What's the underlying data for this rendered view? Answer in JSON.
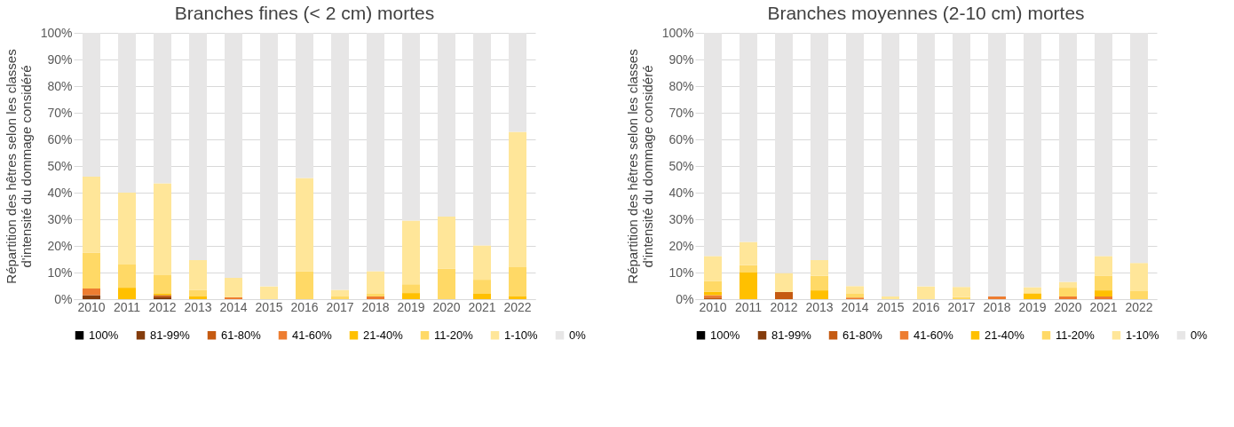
{
  "chart_data": [
    {
      "type": "bar",
      "stacked": true,
      "title": "Branches fines (< 2 cm) mortes",
      "ylabel": "Répartition des hêtres selon les classes d'intensité du dommage  considéré",
      "legend": "bottom",
      "grid": "y",
      "categories": [
        "2010",
        "2011",
        "2012",
        "2013",
        "2014",
        "2015",
        "2016",
        "2017",
        "2018",
        "2019",
        "2020",
        "2021",
        "2022"
      ],
      "ylim": [
        0,
        100
      ],
      "yticks": [
        {
          "value": 0,
          "label": "0%"
        },
        {
          "value": 10,
          "label": "10%"
        },
        {
          "value": 20,
          "label": "20%"
        },
        {
          "value": 30,
          "label": "30%"
        },
        {
          "value": 40,
          "label": "40%"
        },
        {
          "value": 50,
          "label": "50%"
        },
        {
          "value": 60,
          "label": "60%"
        },
        {
          "value": 70,
          "label": "70%"
        },
        {
          "value": 80,
          "label": "80%"
        },
        {
          "value": 90,
          "label": "90%"
        },
        {
          "value": 100,
          "label": "100%"
        }
      ],
      "series": [
        {
          "name": "100%",
          "color": "#000000",
          "values": [
            0,
            0,
            0,
            0,
            0,
            0,
            0,
            0,
            0,
            0,
            0,
            0,
            0
          ]
        },
        {
          "name": "81-99%",
          "color": "#843c0c",
          "values": [
            1.5,
            0,
            0.7,
            0,
            0,
            0,
            0,
            0,
            0,
            0,
            0,
            0,
            0
          ]
        },
        {
          "name": "61-80%",
          "color": "#c55a11",
          "values": [
            0,
            0,
            0.8,
            0,
            0,
            0,
            0,
            0,
            0,
            0,
            0,
            0,
            0
          ]
        },
        {
          "name": "41-60%",
          "color": "#ed7d31",
          "values": [
            2.5,
            0,
            0,
            0,
            0.7,
            0,
            0,
            0,
            1,
            0,
            0,
            0,
            0
          ]
        },
        {
          "name": "21-40%",
          "color": "#ffc000",
          "values": [
            0,
            4.3,
            0.7,
            1.2,
            0,
            0,
            0,
            0,
            0,
            2.3,
            0,
            2,
            1.2
          ]
        },
        {
          "name": "11-20%",
          "color": "#ffd966",
          "values": [
            13.5,
            8.7,
            6.8,
            2.3,
            0,
            0,
            10.5,
            1,
            1,
            3.3,
            11.5,
            5.3,
            10.8
          ]
        },
        {
          "name": "1-10%",
          "color": "#ffe699",
          "values": [
            28.5,
            27,
            34.5,
            11.2,
            7.3,
            4.8,
            35,
            2.5,
            8.5,
            23.9,
            19.5,
            12.9,
            50.8
          ]
        },
        {
          "name": "0%",
          "color": "#e7e6e6",
          "values": [
            54,
            60,
            56.5,
            85.3,
            92,
            95.2,
            54.5,
            96.5,
            89.5,
            70.5,
            69,
            79.8,
            37.2
          ]
        }
      ]
    },
    {
      "type": "bar",
      "stacked": true,
      "title": "Branches moyennes (2-10 cm) mortes",
      "ylabel": "Répartition des hêtres selon les classes d'intensité du dommage  considéré",
      "legend": "bottom",
      "grid": "y",
      "categories": [
        "2010",
        "2011",
        "2012",
        "2013",
        "2014",
        "2015",
        "2016",
        "2017",
        "2018",
        "2019",
        "2020",
        "2021",
        "2022"
      ],
      "ylim": [
        0,
        100
      ],
      "yticks": [
        {
          "value": 0,
          "label": "0%"
        },
        {
          "value": 10,
          "label": "10%"
        },
        {
          "value": 20,
          "label": "20%"
        },
        {
          "value": 30,
          "label": "30%"
        },
        {
          "value": 40,
          "label": "40%"
        },
        {
          "value": 50,
          "label": "50%"
        },
        {
          "value": 60,
          "label": "60%"
        },
        {
          "value": 70,
          "label": "70%"
        },
        {
          "value": 80,
          "label": "80%"
        },
        {
          "value": 90,
          "label": "90%"
        },
        {
          "value": 100,
          "label": "100%"
        }
      ],
      "series": [
        {
          "name": "100%",
          "color": "#000000",
          "values": [
            0,
            0,
            0,
            0,
            0,
            0,
            0,
            0,
            0,
            0,
            0,
            0,
            0
          ]
        },
        {
          "name": "81-99%",
          "color": "#843c0c",
          "values": [
            0,
            0,
            0,
            0,
            0,
            0,
            0,
            0,
            0,
            0,
            0,
            0,
            0
          ]
        },
        {
          "name": "61-80%",
          "color": "#c55a11",
          "values": [
            0.6,
            0,
            2.7,
            0,
            0,
            0,
            0,
            0,
            0,
            0,
            0,
            0,
            0
          ]
        },
        {
          "name": "41-60%",
          "color": "#ed7d31",
          "values": [
            0.9,
            0,
            0,
            0,
            0.6,
            0,
            0,
            0,
            1,
            0,
            1,
            1,
            0
          ]
        },
        {
          "name": "21-40%",
          "color": "#ffc000",
          "values": [
            1.2,
            10.2,
            0,
            3.3,
            0,
            0,
            0,
            0,
            0,
            2.2,
            0,
            2.3,
            0
          ]
        },
        {
          "name": "11-20%",
          "color": "#ffd966",
          "values": [
            4,
            2.6,
            0,
            5.5,
            1.4,
            0,
            0,
            0.8,
            0,
            0,
            3.3,
            5.4,
            3
          ]
        },
        {
          "name": "1-10%",
          "color": "#ffe699",
          "values": [
            9.5,
            8.7,
            7.1,
            5.9,
            2.9,
            1,
            4.8,
            3.8,
            0,
            2.3,
            2.2,
            7.5,
            10.6
          ]
        },
        {
          "name": "0%",
          "color": "#e7e6e6",
          "values": [
            83.8,
            78.5,
            90.2,
            85.3,
            95.1,
            99,
            95.2,
            95.4,
            99,
            95.5,
            93.5,
            83.8,
            86.4
          ]
        }
      ]
    }
  ]
}
